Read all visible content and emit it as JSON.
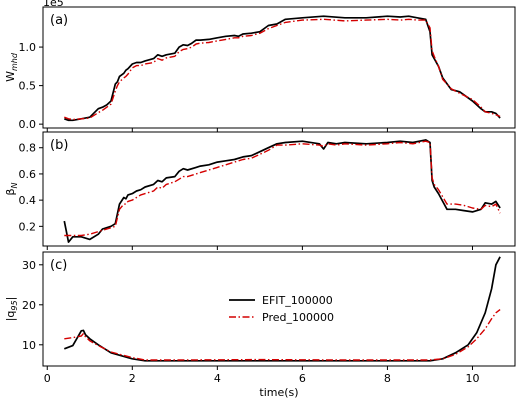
{
  "chart_data": [
    {
      "type": "line",
      "panel_label": "(a)",
      "ylabel_main": "W",
      "ylabel_sub": "mhd",
      "offset_text": "1e5",
      "xlim": [
        -0.1,
        11.0
      ],
      "ylim": [
        -0.05,
        1.52
      ],
      "xticks": [
        0,
        2,
        4,
        6,
        8,
        10
      ],
      "yticks": [
        0.0,
        0.5,
        1.0
      ],
      "ytick_labels": [
        "0.0",
        "0.5",
        "1.0"
      ],
      "series": [
        {
          "name": "EFIT_100000",
          "color": "#000000",
          "style": "solid",
          "x": [
            0.4,
            0.5,
            0.6,
            0.8,
            1.0,
            1.2,
            1.3,
            1.4,
            1.5,
            1.6,
            1.65,
            1.7,
            1.8,
            1.85,
            1.9,
            2.0,
            2.1,
            2.2,
            2.3,
            2.5,
            2.6,
            2.7,
            2.8,
            3.0,
            3.1,
            3.2,
            3.3,
            3.4,
            3.5,
            3.6,
            3.8,
            4.0,
            4.2,
            4.4,
            4.5,
            4.6,
            4.8,
            5.0,
            5.2,
            5.4,
            5.6,
            6.0,
            6.5,
            7.0,
            7.5,
            8.0,
            8.3,
            8.5,
            8.7,
            8.9,
            9.0,
            9.05,
            9.1,
            9.2,
            9.3,
            9.5,
            9.7,
            10.0,
            10.2,
            10.3,
            10.45,
            10.55,
            10.65
          ],
          "y": [
            0.07,
            0.05,
            0.05,
            0.07,
            0.09,
            0.2,
            0.22,
            0.25,
            0.3,
            0.52,
            0.55,
            0.62,
            0.66,
            0.7,
            0.72,
            0.78,
            0.8,
            0.8,
            0.82,
            0.85,
            0.9,
            0.88,
            0.9,
            0.92,
            1.0,
            1.03,
            1.02,
            1.05,
            1.09,
            1.09,
            1.1,
            1.12,
            1.14,
            1.15,
            1.14,
            1.17,
            1.18,
            1.2,
            1.28,
            1.3,
            1.36,
            1.38,
            1.4,
            1.38,
            1.38,
            1.4,
            1.39,
            1.4,
            1.38,
            1.36,
            1.2,
            0.9,
            0.85,
            0.75,
            0.6,
            0.45,
            0.42,
            0.3,
            0.2,
            0.16,
            0.16,
            0.14,
            0.08
          ]
        },
        {
          "name": "Pred_100000",
          "color": "#d40000",
          "style": "dashdot",
          "x": [
            0.4,
            0.5,
            0.6,
            0.8,
            1.0,
            1.2,
            1.3,
            1.4,
            1.5,
            1.6,
            1.65,
            1.7,
            1.8,
            1.85,
            1.9,
            2.0,
            2.1,
            2.2,
            2.3,
            2.5,
            2.6,
            2.7,
            2.8,
            3.0,
            3.1,
            3.2,
            3.3,
            3.4,
            3.5,
            3.6,
            3.8,
            4.0,
            4.2,
            4.4,
            4.5,
            4.6,
            4.8,
            5.0,
            5.2,
            5.4,
            5.6,
            6.0,
            6.5,
            7.0,
            7.5,
            8.0,
            8.3,
            8.5,
            8.7,
            8.9,
            9.0,
            9.05,
            9.1,
            9.2,
            9.3,
            9.5,
            9.7,
            10.0,
            10.2,
            10.3,
            10.45,
            10.55,
            10.65
          ],
          "y": [
            0.09,
            0.07,
            0.06,
            0.07,
            0.08,
            0.15,
            0.18,
            0.22,
            0.26,
            0.43,
            0.5,
            0.55,
            0.6,
            0.62,
            0.65,
            0.73,
            0.76,
            0.76,
            0.78,
            0.8,
            0.85,
            0.83,
            0.86,
            0.88,
            0.94,
            0.97,
            0.98,
            1.0,
            1.04,
            1.05,
            1.06,
            1.08,
            1.1,
            1.12,
            1.12,
            1.14,
            1.15,
            1.18,
            1.24,
            1.28,
            1.32,
            1.35,
            1.36,
            1.34,
            1.35,
            1.36,
            1.35,
            1.36,
            1.35,
            1.35,
            1.25,
            0.95,
            0.88,
            0.75,
            0.58,
            0.46,
            0.4,
            0.32,
            0.22,
            0.16,
            0.14,
            0.12,
            0.1
          ]
        }
      ]
    },
    {
      "type": "line",
      "panel_label": "(b)",
      "ylabel_main": "β",
      "ylabel_sub": "N",
      "xlim": [
        -0.1,
        11.0
      ],
      "ylim": [
        0.05,
        0.92
      ],
      "xticks": [
        0,
        2,
        4,
        6,
        8,
        10
      ],
      "yticks": [
        0.2,
        0.4,
        0.6,
        0.8
      ],
      "ytick_labels": [
        "0.2",
        "0.4",
        "0.6",
        "0.8"
      ],
      "series": [
        {
          "name": "EFIT_100000",
          "color": "#000000",
          "style": "solid",
          "x": [
            0.4,
            0.5,
            0.6,
            0.8,
            1.0,
            1.2,
            1.3,
            1.5,
            1.6,
            1.7,
            1.8,
            1.85,
            1.9,
            2.0,
            2.1,
            2.2,
            2.3,
            2.5,
            2.6,
            2.7,
            2.8,
            3.0,
            3.1,
            3.2,
            3.3,
            3.5,
            3.6,
            3.8,
            4.0,
            4.2,
            4.4,
            4.6,
            4.8,
            5.0,
            5.2,
            5.4,
            5.6,
            6.0,
            6.4,
            6.5,
            6.6,
            6.8,
            7.0,
            7.5,
            8.0,
            8.3,
            8.6,
            8.9,
            9.0,
            9.05,
            9.1,
            9.2,
            9.4,
            9.6,
            9.8,
            10.0,
            10.2,
            10.3,
            10.45,
            10.55,
            10.65
          ],
          "y": [
            0.24,
            0.08,
            0.12,
            0.12,
            0.1,
            0.14,
            0.18,
            0.2,
            0.22,
            0.37,
            0.42,
            0.41,
            0.44,
            0.45,
            0.47,
            0.48,
            0.5,
            0.52,
            0.55,
            0.54,
            0.57,
            0.58,
            0.62,
            0.64,
            0.63,
            0.65,
            0.66,
            0.67,
            0.69,
            0.7,
            0.71,
            0.73,
            0.74,
            0.77,
            0.8,
            0.83,
            0.84,
            0.85,
            0.83,
            0.79,
            0.84,
            0.83,
            0.84,
            0.83,
            0.84,
            0.85,
            0.84,
            0.86,
            0.84,
            0.55,
            0.5,
            0.45,
            0.33,
            0.33,
            0.32,
            0.31,
            0.33,
            0.38,
            0.37,
            0.39,
            0.34
          ]
        },
        {
          "name": "Pred_100000",
          "color": "#d40000",
          "style": "dashdot",
          "x": [
            0.4,
            0.5,
            0.6,
            0.8,
            1.0,
            1.2,
            1.3,
            1.5,
            1.6,
            1.7,
            1.8,
            1.85,
            1.9,
            2.0,
            2.1,
            2.2,
            2.3,
            2.5,
            2.6,
            2.7,
            2.8,
            3.0,
            3.1,
            3.2,
            3.3,
            3.5,
            3.6,
            3.8,
            4.0,
            4.2,
            4.4,
            4.6,
            4.8,
            5.0,
            5.2,
            5.4,
            5.6,
            6.0,
            6.4,
            6.5,
            6.6,
            6.8,
            7.0,
            7.5,
            8.0,
            8.3,
            8.6,
            8.9,
            9.0,
            9.05,
            9.1,
            9.2,
            9.4,
            9.6,
            9.8,
            10.0,
            10.2,
            10.3,
            10.45,
            10.55,
            10.65
          ],
          "y": [
            0.13,
            0.13,
            0.13,
            0.13,
            0.14,
            0.16,
            0.17,
            0.19,
            0.2,
            0.33,
            0.37,
            0.37,
            0.39,
            0.4,
            0.42,
            0.44,
            0.45,
            0.47,
            0.5,
            0.49,
            0.52,
            0.54,
            0.56,
            0.58,
            0.58,
            0.6,
            0.61,
            0.63,
            0.65,
            0.67,
            0.69,
            0.71,
            0.72,
            0.75,
            0.78,
            0.82,
            0.82,
            0.83,
            0.82,
            0.81,
            0.83,
            0.82,
            0.83,
            0.82,
            0.83,
            0.84,
            0.83,
            0.85,
            0.84,
            0.57,
            0.52,
            0.48,
            0.37,
            0.37,
            0.36,
            0.34,
            0.33,
            0.36,
            0.35,
            0.37,
            0.3
          ]
        }
      ]
    },
    {
      "type": "line",
      "panel_label": "(c)",
      "ylabel_main": "|q",
      "ylabel_sub": "95",
      "ylabel_end": "|",
      "xlabel": "time(s)",
      "xlim": [
        -0.1,
        11.0
      ],
      "ylim": [
        4.7,
        33.2
      ],
      "xticks": [
        0,
        2,
        4,
        6,
        8,
        10
      ],
      "xtick_labels": [
        "0",
        "2",
        "4",
        "6",
        "8",
        "10"
      ],
      "yticks": [
        10,
        20,
        30
      ],
      "ytick_labels": [
        "10",
        "20",
        "30"
      ],
      "legend_position": "center",
      "series": [
        {
          "name": "EFIT_100000",
          "color": "#000000",
          "style": "solid",
          "x": [
            0.4,
            0.6,
            0.8,
            0.85,
            0.9,
            1.0,
            1.2,
            1.5,
            2.0,
            2.3,
            3.0,
            5.0,
            7.0,
            8.5,
            9.0,
            9.3,
            9.6,
            9.9,
            10.1,
            10.3,
            10.45,
            10.55,
            10.65
          ],
          "y": [
            9.0,
            9.8,
            13.5,
            13.6,
            12.5,
            11.5,
            10.0,
            8.0,
            6.5,
            6.0,
            6.0,
            6.0,
            6.0,
            6.0,
            6.0,
            6.5,
            8.0,
            10.0,
            13.0,
            18.0,
            24.0,
            30.0,
            32.0
          ]
        },
        {
          "name": "Pred_100000",
          "color": "#d40000",
          "style": "dashdot",
          "x": [
            0.4,
            0.6,
            0.8,
            0.85,
            0.9,
            1.0,
            1.2,
            1.5,
            2.0,
            2.3,
            3.0,
            5.0,
            7.0,
            8.5,
            9.0,
            9.3,
            9.6,
            9.9,
            10.1,
            10.3,
            10.45,
            10.55,
            10.65
          ],
          "y": [
            11.5,
            11.8,
            12.2,
            12.8,
            12.0,
            11.0,
            9.8,
            8.2,
            6.8,
            6.2,
            6.2,
            6.3,
            6.2,
            6.2,
            6.2,
            6.5,
            7.6,
            9.5,
            11.5,
            14.0,
            16.5,
            18.0,
            18.8
          ]
        }
      ]
    }
  ]
}
